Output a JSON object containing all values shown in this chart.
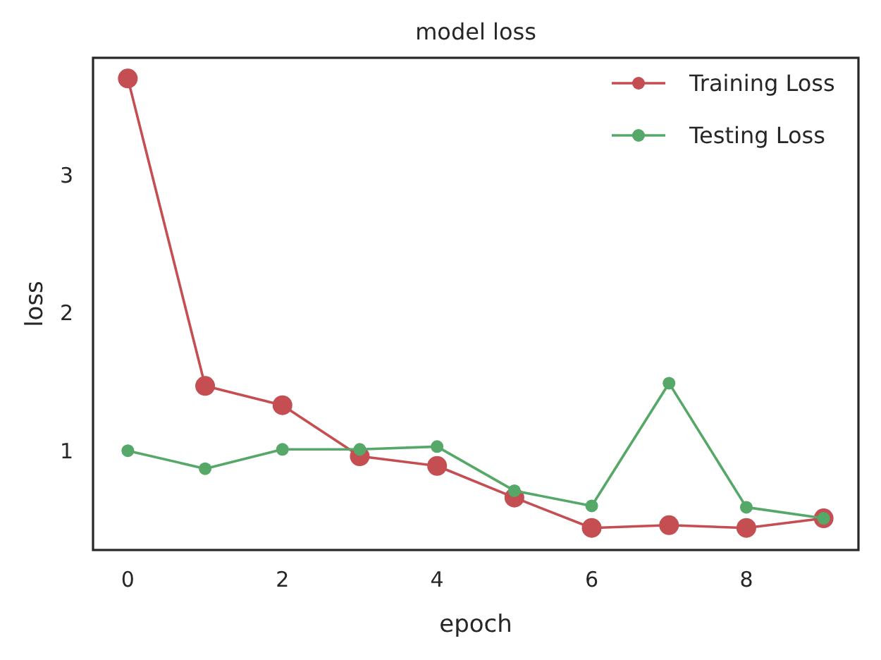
{
  "chart_data": {
    "type": "line",
    "title": "model loss",
    "xlabel": "epoch",
    "ylabel": "loss",
    "x": [
      0,
      1,
      2,
      3,
      4,
      5,
      6,
      7,
      8,
      9
    ],
    "series": [
      {
        "name": "Training Loss",
        "color": "#c44e52",
        "values": [
          3.7,
          1.47,
          1.33,
          0.96,
          0.89,
          0.66,
          0.44,
          0.46,
          0.44,
          0.51
        ]
      },
      {
        "name": "Testing Loss",
        "color": "#55a868",
        "values": [
          1.0,
          0.87,
          1.01,
          1.01,
          1.03,
          0.71,
          0.6,
          1.49,
          0.59,
          0.51
        ]
      }
    ],
    "xlim": [
      -0.45,
      9.45
    ],
    "ylim": [
      0.28,
      3.85
    ],
    "xticks": [
      0,
      2,
      4,
      6,
      8
    ],
    "yticks": [
      1,
      2,
      3
    ],
    "grid": false,
    "legend": "top right",
    "marker": "circle",
    "line_style": "solid"
  }
}
